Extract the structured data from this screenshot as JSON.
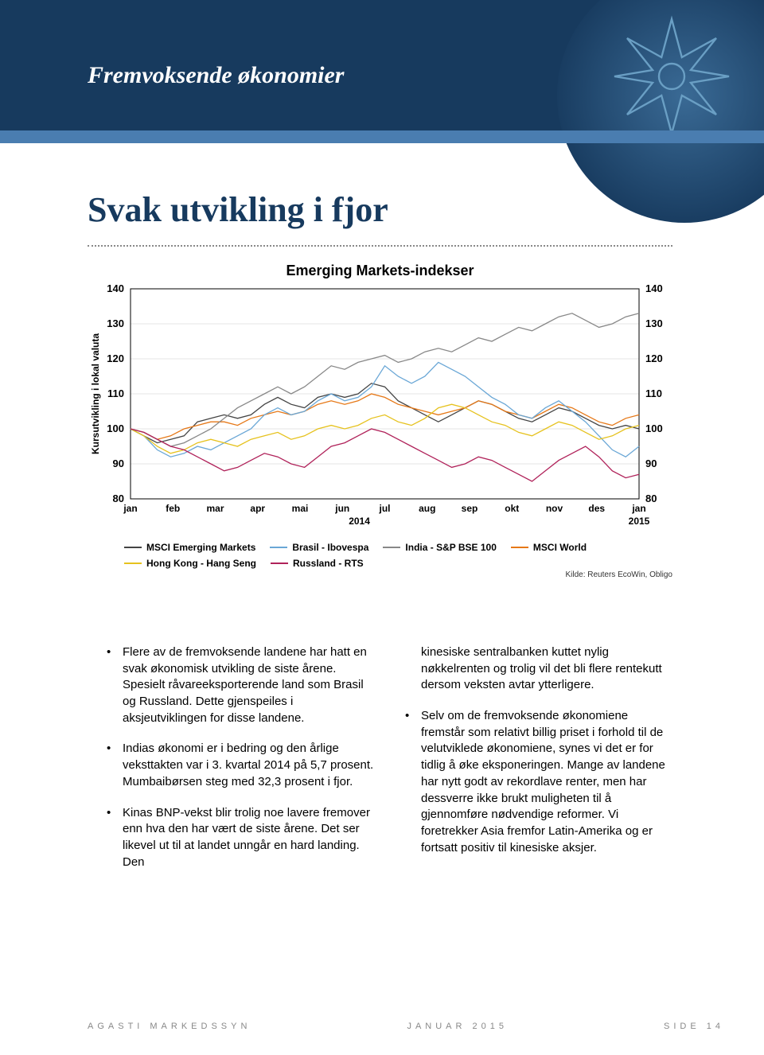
{
  "header": {
    "section_title": "Fremvoksende økonomier"
  },
  "page": {
    "main_title": "Svak utvikling i fjor"
  },
  "chart": {
    "type": "line",
    "title": "Emerging Markets-indekser",
    "ylabel": "Kursutvikling i lokal valuta",
    "ylim": [
      80,
      140
    ],
    "ytick_step": 10,
    "yticks": [
      80,
      90,
      100,
      110,
      120,
      130,
      140
    ],
    "xticks": [
      "jan",
      "feb",
      "mar",
      "apr",
      "mai",
      "jun",
      "jul",
      "aug",
      "sep",
      "okt",
      "nov",
      "des",
      "jan"
    ],
    "x_year_left": "2014",
    "x_year_right": "2015",
    "background_color": "#ffffff",
    "grid_color": "#cccccc",
    "axis_color": "#000000",
    "title_fontsize": 18,
    "label_fontsize": 12,
    "line_width": 1.3,
    "source": "Kilde: Reuters EcoWin, Obligo",
    "series": [
      {
        "name": "MSCI Emerging Markets",
        "color": "#444444",
        "values": [
          100,
          98,
          96,
          97,
          98,
          102,
          103,
          104,
          103,
          104,
          107,
          109,
          107,
          106,
          109,
          110,
          109,
          110,
          113,
          112,
          108,
          106,
          104,
          102,
          104,
          106,
          108,
          107,
          105,
          103,
          102,
          104,
          106,
          105,
          103,
          101,
          100,
          101,
          100
        ]
      },
      {
        "name": "MSCI World",
        "color": "#e67817",
        "values": [
          100,
          99,
          97,
          98,
          100,
          101,
          102,
          102,
          101,
          103,
          104,
          105,
          104,
          105,
          107,
          108,
          107,
          108,
          110,
          109,
          107,
          106,
          105,
          104,
          105,
          106,
          108,
          107,
          105,
          104,
          103,
          105,
          107,
          106,
          104,
          102,
          101,
          103,
          104
        ]
      },
      {
        "name": "Brasil - Ibovespa",
        "color": "#6aa7d6",
        "values": [
          100,
          98,
          94,
          92,
          93,
          95,
          94,
          96,
          98,
          100,
          104,
          106,
          104,
          105,
          108,
          110,
          108,
          109,
          112,
          118,
          115,
          113,
          115,
          119,
          117,
          115,
          112,
          109,
          107,
          104,
          103,
          106,
          108,
          105,
          102,
          98,
          94,
          92,
          95
        ]
      },
      {
        "name": "Hong Kong - Hang Seng",
        "color": "#e6c21e",
        "values": [
          100,
          98,
          95,
          93,
          94,
          96,
          97,
          96,
          95,
          97,
          98,
          99,
          97,
          98,
          100,
          101,
          100,
          101,
          103,
          104,
          102,
          101,
          103,
          106,
          107,
          106,
          104,
          102,
          101,
          99,
          98,
          100,
          102,
          101,
          99,
          97,
          98,
          100,
          101
        ]
      },
      {
        "name": "India - S&P BSE 100",
        "color": "#888888",
        "values": [
          100,
          99,
          97,
          95,
          96,
          98,
          100,
          103,
          106,
          108,
          110,
          112,
          110,
          112,
          115,
          118,
          117,
          119,
          120,
          121,
          119,
          120,
          122,
          123,
          122,
          124,
          126,
          125,
          127,
          129,
          128,
          130,
          132,
          133,
          131,
          129,
          130,
          132,
          133
        ]
      },
      {
        "name": "Russland - RTS",
        "color": "#b0225a",
        "values": [
          100,
          99,
          97,
          95,
          94,
          92,
          90,
          88,
          89,
          91,
          93,
          92,
          90,
          89,
          92,
          95,
          96,
          98,
          100,
          99,
          97,
          95,
          93,
          91,
          89,
          90,
          92,
          91,
          89,
          87,
          85,
          88,
          91,
          93,
          95,
          92,
          88,
          86,
          87
        ]
      }
    ],
    "legend": [
      {
        "label": "MSCI Emerging Markets",
        "color": "#444444"
      },
      {
        "label": "Brasil - Ibovespa",
        "color": "#6aa7d6"
      },
      {
        "label": "India - S&P BSE 100",
        "color": "#888888"
      },
      {
        "label": "MSCI World",
        "color": "#e67817"
      },
      {
        "label": "Hong Kong - Hang Seng",
        "color": "#e6c21e"
      },
      {
        "label": "Russland - RTS",
        "color": "#b0225a"
      }
    ]
  },
  "body": {
    "col1": {
      "b1": "Flere av de fremvoksende landene har hatt en svak økonomisk utvikling de siste årene. Spesielt råvareeksporterende land som Brasil og Russland. Dette gjenspeiles i aksjeutviklingen for disse landene.",
      "b2": "Indias økonomi er i bedring og den årlige veksttakten var i 3. kvartal 2014 på 5,7 prosent. Mumbaibørsen steg med 32,3 prosent i fjor.",
      "b3": "Kinas BNP-vekst blir trolig noe lavere fremover enn hva den har vært de siste årene. Det ser likevel ut til at landet unngår en hard landing. Den"
    },
    "col2": {
      "cont": "kinesiske sentralbanken kuttet nylig nøkkelrenten og trolig vil det bli flere rentekutt dersom veksten avtar ytterligere.",
      "b1": "Selv om de fremvoksende økonomiene fremstår som relativt billig priset i forhold til de velutviklede økonomiene, synes vi det er for tidlig å øke eksponeringen. Mange av landene har nytt godt av rekordlave renter, men har dessverre ikke brukt muligheten til å gjennomføre nødvendige reformer. Vi foretrekker Asia fremfor Latin-Amerika og er fortsatt positiv til kinesiske aksjer."
    }
  },
  "footer": {
    "left": "AGASTI MARKEDSSYN",
    "center": "JANUAR 2015",
    "right": "SIDE 14"
  }
}
